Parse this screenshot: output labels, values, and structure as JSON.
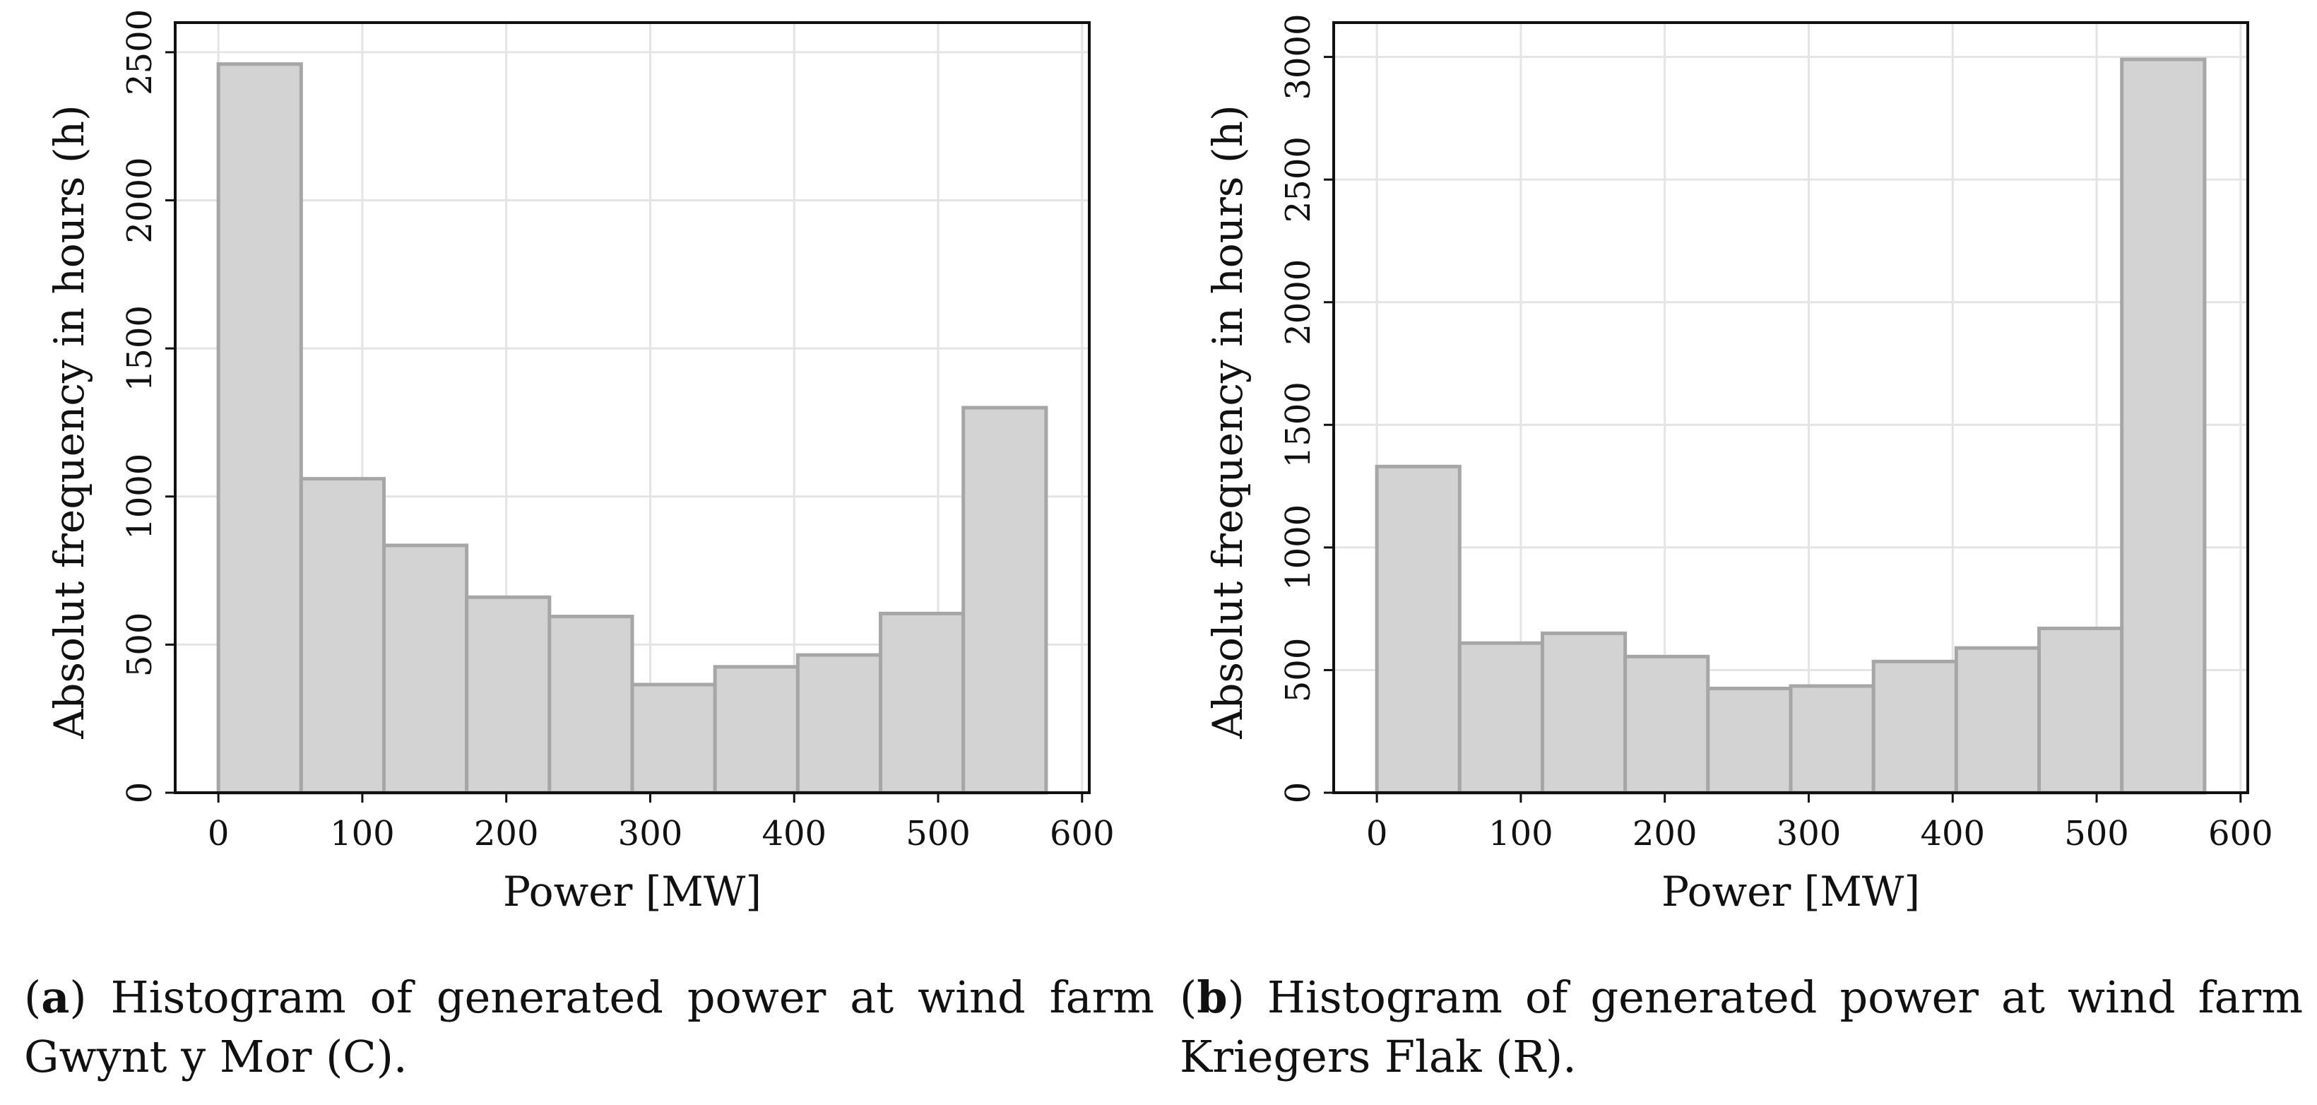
{
  "charts": [
    {
      "id": "a",
      "caption": {
        "label": "a",
        "text": "Histogram of generated power at wind farm Gwynt y Mor (C)."
      },
      "chart_data": {
        "type": "bar",
        "subtype": "histogram",
        "xlabel": "Power [MW]",
        "ylabel": "Absolut frequency in hours (h)",
        "xlim": [
          -30,
          605
        ],
        "ylim": [
          0,
          2600
        ],
        "xticks": [
          0,
          100,
          200,
          300,
          400,
          500,
          600
        ],
        "yticks": [
          0,
          500,
          1000,
          1500,
          2000,
          2500
        ],
        "bin_edges": [
          0,
          57.5,
          115,
          172.5,
          230,
          287.5,
          345,
          402.5,
          460,
          517.5,
          575
        ],
        "values": [
          2460,
          1060,
          835,
          660,
          595,
          365,
          425,
          465,
          605,
          1300
        ],
        "grid": true
      }
    },
    {
      "id": "b",
      "caption": {
        "label": "b",
        "text": "Histogram of generated power at wind farm Kriegers Flak (R)."
      },
      "chart_data": {
        "type": "bar",
        "subtype": "histogram",
        "xlabel": "Power [MW]",
        "ylabel": "Absolut frequency in hours (h)",
        "xlim": [
          -30,
          605
        ],
        "ylim": [
          0,
          3140
        ],
        "xticks": [
          0,
          100,
          200,
          300,
          400,
          500,
          600
        ],
        "yticks": [
          0,
          500,
          1000,
          1500,
          2000,
          2500,
          3000
        ],
        "bin_edges": [
          0,
          57.5,
          115,
          172.5,
          230,
          287.5,
          345,
          402.5,
          460,
          517.5,
          575
        ],
        "values": [
          1330,
          610,
          650,
          555,
          425,
          435,
          535,
          590,
          670,
          2990
        ],
        "grid": true
      }
    }
  ]
}
